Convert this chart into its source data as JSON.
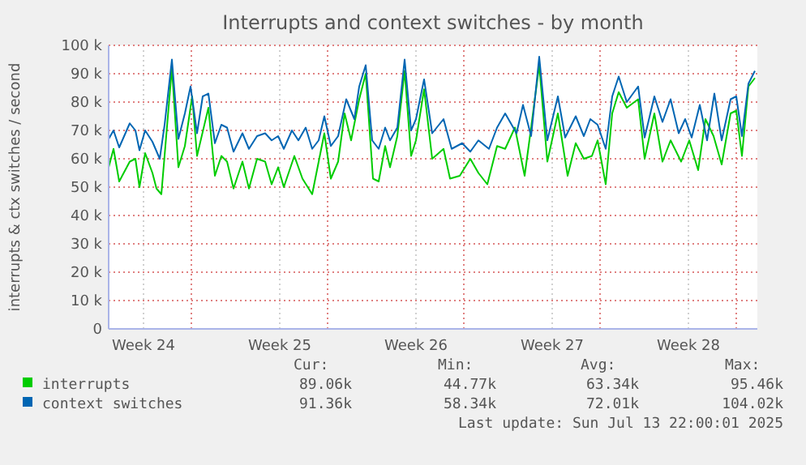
{
  "chart_data": {
    "type": "line",
    "title": "Interrupts and context switches - by month",
    "ylabel": "interrupts & ctx switches / second",
    "xlim": [
      "2025-06-11T18:00",
      "2025-07-15T02:00"
    ],
    "ylim": [
      0,
      100000
    ],
    "xticks": [
      {
        "value": "2025-06-13T13:00",
        "label": "Week 24"
      },
      {
        "value": "2025-06-20T13:00",
        "label": "Week 25"
      },
      {
        "value": "2025-06-27T13:00",
        "label": "Week 26"
      },
      {
        "value": "2025-07-04T13:00",
        "label": "Week 27"
      },
      {
        "value": "2025-07-11T13:00",
        "label": "Week 28"
      },
      {
        "value": "2025-06-16T00:00",
        "label": null
      },
      {
        "value": "2025-06-23T00:00",
        "label": null
      },
      {
        "value": "2025-06-30T00:00",
        "label": null
      },
      {
        "value": "2025-07-07T00:00",
        "label": null
      },
      {
        "value": "2025-07-14T00:00",
        "label": null
      }
    ],
    "yticks": [
      {
        "value": 0,
        "label": "0"
      },
      {
        "value": 10000,
        "label": "10 k"
      },
      {
        "value": 20000,
        "label": "20 k"
      },
      {
        "value": 30000,
        "label": "30 k"
      },
      {
        "value": 40000,
        "label": "40 k"
      },
      {
        "value": 50000,
        "label": "50 k"
      },
      {
        "value": 60000,
        "label": "60 k"
      },
      {
        "value": 70000,
        "label": "70 k"
      },
      {
        "value": 80000,
        "label": "80 k"
      },
      {
        "value": 90000,
        "label": "90 k"
      },
      {
        "value": 100000,
        "label": "100 k"
      }
    ],
    "grid": true,
    "legend": "bottom",
    "line_style": "solid",
    "marker": "none",
    "series": [
      {
        "name": "interrupts",
        "color": "#00cc00",
        "x": [
          "2025-06-11T18:00",
          "2025-06-12T00:00",
          "2025-06-12T07:00",
          "2025-06-12T20:00",
          "2025-06-13T03:00",
          "2025-06-13T08:00",
          "2025-06-13T15:00",
          "2025-06-14T00:00",
          "2025-06-14T05:00",
          "2025-06-14T11:00",
          "2025-06-15T00:00",
          "2025-06-15T08:00",
          "2025-06-15T16:00",
          "2025-06-16T01:00",
          "2025-06-16T07:00",
          "2025-06-16T21:00",
          "2025-06-17T05:00",
          "2025-06-17T13:00",
          "2025-06-17T20:00",
          "2025-06-18T04:00",
          "2025-06-18T15:00",
          "2025-06-18T23:00",
          "2025-06-19T09:00",
          "2025-06-19T19:00",
          "2025-06-20T03:00",
          "2025-06-20T11:00",
          "2025-06-20T18:00",
          "2025-06-21T07:00",
          "2025-06-21T17:00",
          "2025-06-22T05:00",
          "2025-06-22T20:00",
          "2025-06-23T04:00",
          "2025-06-23T13:00",
          "2025-06-23T21:00",
          "2025-06-24T05:00",
          "2025-06-24T15:00",
          "2025-06-24T23:00",
          "2025-06-25T08:00",
          "2025-06-25T15:00",
          "2025-06-25T23:00",
          "2025-06-26T05:00",
          "2025-06-26T14:00",
          "2025-06-26T23:00",
          "2025-06-27T07:00",
          "2025-06-27T13:00",
          "2025-06-27T23:00",
          "2025-06-28T09:00",
          "2025-06-28T23:00",
          "2025-06-29T07:00",
          "2025-06-29T19:00",
          "2025-06-30T08:00",
          "2025-06-30T18:00",
          "2025-07-01T05:00",
          "2025-07-01T17:00",
          "2025-07-02T03:00",
          "2025-07-02T15:00",
          "2025-07-03T03:00",
          "2025-07-03T11:00",
          "2025-07-03T21:00",
          "2025-07-04T07:00",
          "2025-07-04T20:00",
          "2025-07-05T08:00",
          "2025-07-05T18:00",
          "2025-07-06T04:00",
          "2025-07-06T14:00",
          "2025-07-06T21:00",
          "2025-07-07T07:00",
          "2025-07-07T15:00",
          "2025-07-07T23:00",
          "2025-07-08T09:00",
          "2025-07-08T23:00",
          "2025-07-09T07:00",
          "2025-07-09T19:00",
          "2025-07-10T05:00",
          "2025-07-10T15:00",
          "2025-07-11T04:00",
          "2025-07-11T14:00",
          "2025-07-12T01:00",
          "2025-07-12T10:00",
          "2025-07-12T20:00",
          "2025-07-13T06:00",
          "2025-07-13T17:00",
          "2025-07-14T00:00",
          "2025-07-14T07:00",
          "2025-07-14T15:00",
          "2025-07-14T23:00"
        ],
        "values": [
          57000,
          63500,
          52000,
          59000,
          60000,
          50000,
          62000,
          55000,
          49500,
          47500,
          92000,
          57000,
          64500,
          82000,
          61000,
          78000,
          54000,
          61000,
          59000,
          49500,
          59000,
          49500,
          60000,
          59000,
          51000,
          57000,
          50000,
          61000,
          53000,
          47500,
          69000,
          53000,
          59000,
          76000,
          66500,
          81000,
          90000,
          53000,
          52000,
          64500,
          57000,
          68000,
          91000,
          61000,
          66500,
          84500,
          60000,
          63500,
          53000,
          54000,
          60000,
          55000,
          51000,
          64500,
          63500,
          71000,
          54000,
          71000,
          93000,
          59000,
          76000,
          54000,
          65500,
          60000,
          61000,
          66500,
          51000,
          76000,
          83500,
          78000,
          81000,
          60000,
          76000,
          59000,
          66500,
          59000,
          66500,
          56000,
          74000,
          68000,
          58000,
          76000,
          77000,
          61000,
          85500,
          88500
        ]
      },
      {
        "name": "context switches",
        "color": "#0066b3",
        "x": [
          "2025-06-11T18:00",
          "2025-06-12T00:00",
          "2025-06-12T07:00",
          "2025-06-12T20:00",
          "2025-06-13T03:00",
          "2025-06-13T08:00",
          "2025-06-13T15:00",
          "2025-06-14T00:00",
          "2025-06-14T09:00",
          "2025-06-14T15:00",
          "2025-06-15T00:00",
          "2025-06-15T08:00",
          "2025-06-15T16:00",
          "2025-06-15T23:00",
          "2025-06-16T07:00",
          "2025-06-16T14:00",
          "2025-06-16T21:00",
          "2025-06-17T05:00",
          "2025-06-17T13:00",
          "2025-06-17T20:00",
          "2025-06-18T04:00",
          "2025-06-18T15:00",
          "2025-06-18T23:00",
          "2025-06-19T09:00",
          "2025-06-19T19:00",
          "2025-06-20T03:00",
          "2025-06-20T11:00",
          "2025-06-20T18:00",
          "2025-06-21T04:00",
          "2025-06-21T12:00",
          "2025-06-21T21:00",
          "2025-06-22T05:00",
          "2025-06-22T13:00",
          "2025-06-22T20:00",
          "2025-06-23T04:00",
          "2025-06-23T13:00",
          "2025-06-23T23:00",
          "2025-06-24T09:00",
          "2025-06-24T15:00",
          "2025-06-24T23:00",
          "2025-06-25T07:00",
          "2025-06-25T15:00",
          "2025-06-25T23:00",
          "2025-06-26T05:00",
          "2025-06-26T14:00",
          "2025-06-26T23:00",
          "2025-06-27T07:00",
          "2025-06-27T13:00",
          "2025-06-27T23:00",
          "2025-06-28T09:00",
          "2025-06-28T23:00",
          "2025-06-29T09:00",
          "2025-06-29T22:00",
          "2025-06-30T08:00",
          "2025-06-30T18:00",
          "2025-07-01T07:00",
          "2025-07-01T17:00",
          "2025-07-02T03:00",
          "2025-07-02T17:00",
          "2025-07-03T01:00",
          "2025-07-03T11:00",
          "2025-07-03T21:00",
          "2025-07-04T07:00",
          "2025-07-04T20:00",
          "2025-07-05T05:00",
          "2025-07-05T18:00",
          "2025-07-06T04:00",
          "2025-07-06T12:00",
          "2025-07-06T21:00",
          "2025-07-07T07:00",
          "2025-07-07T15:00",
          "2025-07-07T23:00",
          "2025-07-08T09:00",
          "2025-07-08T23:00",
          "2025-07-09T07:00",
          "2025-07-09T19:00",
          "2025-07-10T05:00",
          "2025-07-10T15:00",
          "2025-07-11T01:00",
          "2025-07-11T09:00",
          "2025-07-11T17:00",
          "2025-07-12T03:00",
          "2025-07-12T12:00",
          "2025-07-12T21:00",
          "2025-07-13T06:00",
          "2025-07-13T17:00",
          "2025-07-14T00:00",
          "2025-07-14T07:00",
          "2025-07-14T15:00",
          "2025-07-14T23:00"
        ],
        "values": [
          67000,
          70000,
          64000,
          72500,
          70000,
          63000,
          70000,
          66000,
          60000,
          72000,
          95000,
          67000,
          76000,
          85500,
          69000,
          82000,
          83000,
          65500,
          72000,
          71000,
          62500,
          69000,
          63500,
          68000,
          69000,
          66500,
          68000,
          63500,
          70000,
          66500,
          71000,
          63500,
          66500,
          75000,
          64500,
          68000,
          81000,
          74000,
          85500,
          93000,
          66500,
          63500,
          71000,
          66500,
          71000,
          95000,
          70000,
          74000,
          88000,
          69000,
          74000,
          63500,
          65500,
          62500,
          66500,
          63500,
          71000,
          76000,
          69000,
          79000,
          68000,
          96000,
          66500,
          82000,
          67500,
          75000,
          68000,
          74000,
          72000,
          63500,
          82000,
          89000,
          80000,
          85500,
          67500,
          82000,
          73000,
          81000,
          69000,
          74000,
          67500,
          79000,
          66500,
          83000,
          66500,
          81000,
          82000,
          68000,
          86500,
          91000
        ]
      }
    ],
    "annotations": [
      "Cur:",
      "Min:",
      "Avg:",
      "Max:",
      "89.06k",
      "44.77k",
      "63.34k",
      "95.46k",
      "91.36k",
      "58.34k",
      "72.01k",
      "104.02k",
      "Last update: Sun Jul 13 22:00:01 2025"
    ]
  }
}
